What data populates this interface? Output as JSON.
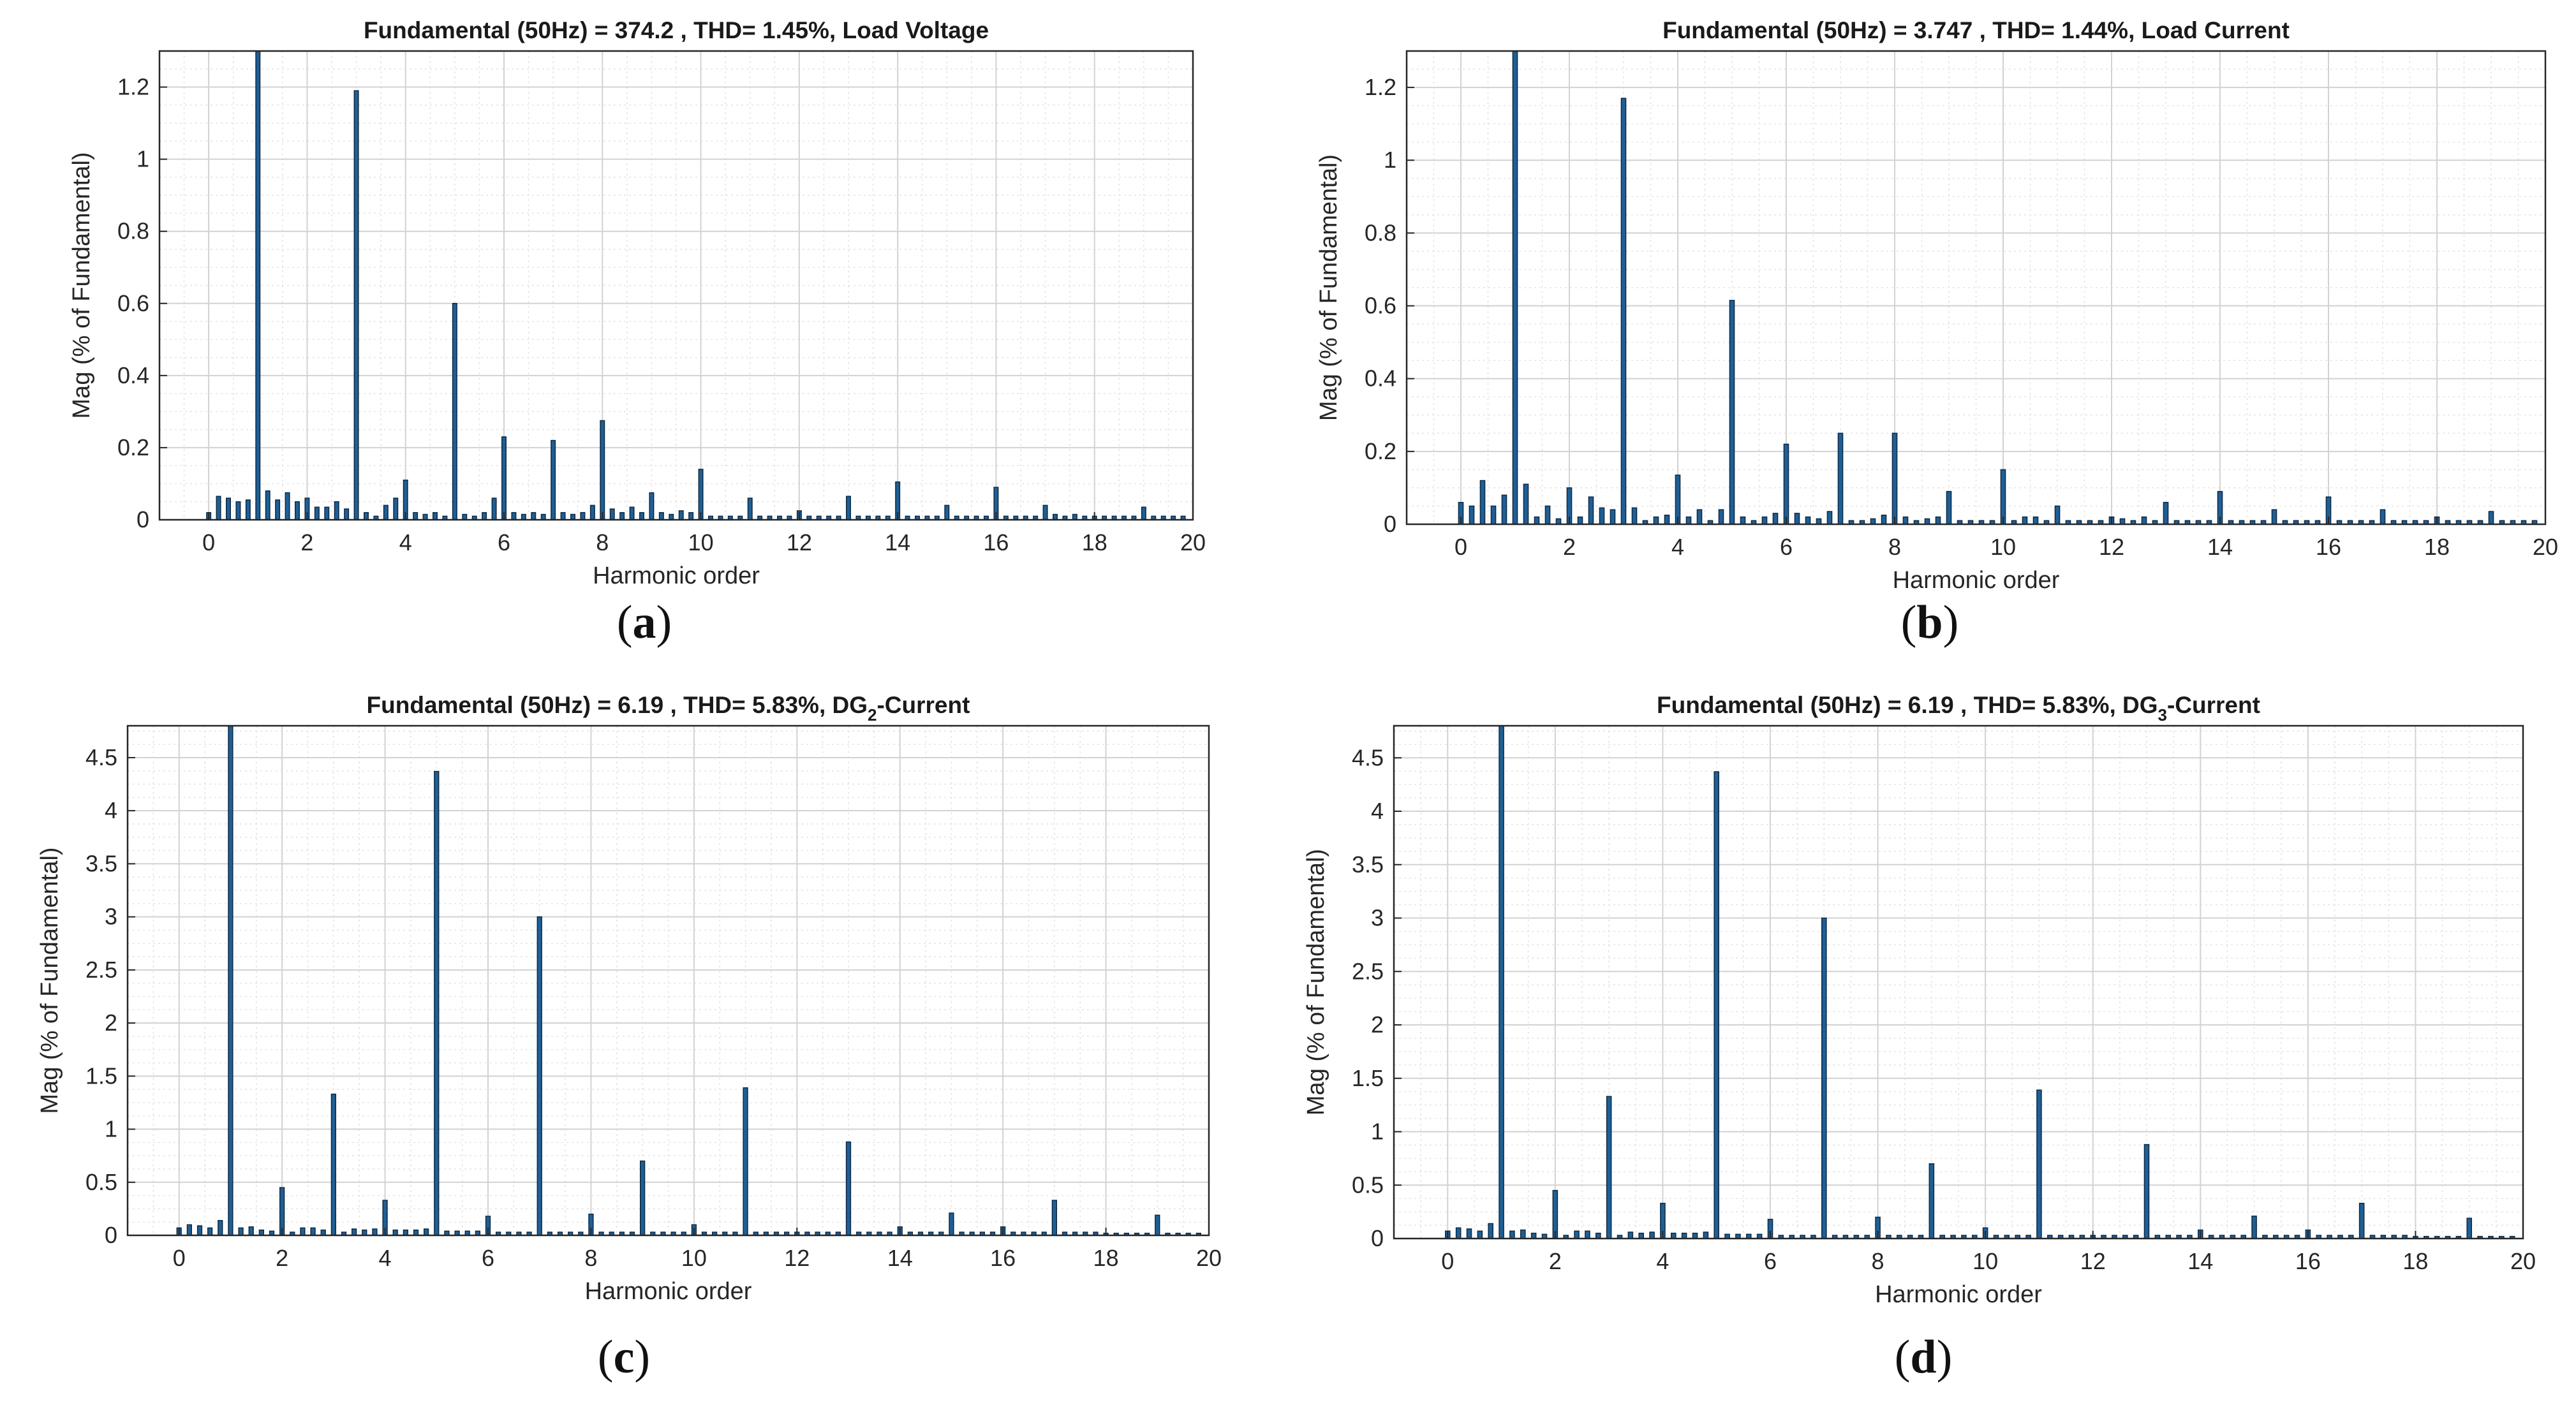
{
  "chart_data": [
    {
      "id": "a",
      "type": "bar",
      "panel_label": "a",
      "title": "Fundamental (50Hz) = 374.2 , THD= 1.45%, Load Voltage",
      "xlabel": "Harmonic order",
      "ylabel": "Mag (% of Fundamental)",
      "xlim": [
        -1,
        20
      ],
      "ylim": [
        0,
        1.3
      ],
      "xticks": [
        0,
        2,
        4,
        6,
        8,
        10,
        12,
        14,
        16,
        18,
        20
      ],
      "yticks": [
        0,
        0.2,
        0.4,
        0.6,
        0.8,
        1,
        1.2
      ],
      "ytick_labels": [
        "0",
        "0.2",
        "0.4",
        "0.6",
        "0.8",
        "1",
        "1.2"
      ],
      "grid": true,
      "bar_color": "#1f5f95",
      "x_start": 0,
      "x_step": 0.2,
      "values": [
        0.02,
        0.065,
        0.06,
        0.05,
        0.055,
        1.3,
        0.08,
        0.055,
        0.075,
        0.05,
        0.06,
        0.035,
        0.035,
        0.05,
        0.03,
        1.19,
        0.02,
        0.01,
        0.04,
        0.06,
        0.11,
        0.02,
        0.015,
        0.02,
        0.01,
        0.6,
        0.015,
        0.01,
        0.02,
        0.06,
        0.23,
        0.02,
        0.015,
        0.02,
        0.015,
        0.22,
        0.02,
        0.015,
        0.02,
        0.04,
        0.275,
        0.03,
        0.02,
        0.035,
        0.02,
        0.075,
        0.02,
        0.015,
        0.025,
        0.02,
        0.14,
        0.01,
        0.01,
        0.01,
        0.01,
        0.06,
        0.01,
        0.01,
        0.01,
        0.01,
        0.025,
        0.01,
        0.01,
        0.01,
        0.01,
        0.065,
        0.01,
        0.01,
        0.01,
        0.01,
        0.105,
        0.01,
        0.01,
        0.01,
        0.01,
        0.04,
        0.01,
        0.01,
        0.01,
        0.01,
        0.09,
        0.01,
        0.01,
        0.01,
        0.01,
        0.04,
        0.015,
        0.01,
        0.015,
        0.01,
        0.01,
        0.01,
        0.01,
        0.01,
        0.01,
        0.035,
        0.01,
        0.01,
        0.01,
        0.01
      ]
    },
    {
      "id": "b",
      "type": "bar",
      "panel_label": "b",
      "title": "Fundamental (50Hz) = 3.747 , THD= 1.44%, Load Current",
      "xlabel": "Harmonic order",
      "ylabel": "Mag (% of Fundamental)",
      "xlim": [
        -1,
        20
      ],
      "ylim": [
        0,
        1.3
      ],
      "xticks": [
        0,
        2,
        4,
        6,
        8,
        10,
        12,
        14,
        16,
        18,
        20
      ],
      "yticks": [
        0,
        0.2,
        0.4,
        0.6,
        0.8,
        1,
        1.2
      ],
      "ytick_labels": [
        "0",
        "0.2",
        "0.4",
        "0.6",
        "0.8",
        "1",
        "1.2"
      ],
      "grid": true,
      "bar_color": "#1f5f95",
      "x_start": 0,
      "x_step": 0.2,
      "values": [
        0.06,
        0.05,
        0.12,
        0.05,
        0.08,
        1.3,
        0.11,
        0.02,
        0.05,
        0.015,
        0.1,
        0.02,
        0.075,
        0.045,
        0.04,
        1.17,
        0.045,
        0.01,
        0.02,
        0.025,
        0.135,
        0.02,
        0.04,
        0.01,
        0.04,
        0.615,
        0.02,
        0.01,
        0.02,
        0.03,
        0.22,
        0.03,
        0.02,
        0.015,
        0.035,
        0.25,
        0.01,
        0.01,
        0.015,
        0.025,
        0.25,
        0.02,
        0.01,
        0.015,
        0.02,
        0.09,
        0.01,
        0.01,
        0.01,
        0.01,
        0.15,
        0.01,
        0.02,
        0.02,
        0.01,
        0.05,
        0.01,
        0.01,
        0.01,
        0.01,
        0.02,
        0.015,
        0.01,
        0.02,
        0.01,
        0.06,
        0.01,
        0.01,
        0.01,
        0.01,
        0.09,
        0.01,
        0.01,
        0.01,
        0.01,
        0.04,
        0.01,
        0.01,
        0.01,
        0.01,
        0.075,
        0.01,
        0.01,
        0.01,
        0.01,
        0.04,
        0.01,
        0.01,
        0.01,
        0.01,
        0.02,
        0.01,
        0.01,
        0.01,
        0.01,
        0.035,
        0.01,
        0.01,
        0.01,
        0.01
      ]
    },
    {
      "id": "c",
      "type": "bar",
      "panel_label": "c",
      "title": "Fundamental (50Hz) = 6.19 , THD= 5.83%, DG",
      "title_subscript": "2",
      "title_suffix": "-Current",
      "xlabel": "Harmonic order",
      "ylabel": "Mag (% of Fundamental)",
      "xlim": [
        -1,
        20
      ],
      "ylim": [
        0,
        4.8
      ],
      "xticks": [
        0,
        2,
        4,
        6,
        8,
        10,
        12,
        14,
        16,
        18,
        20
      ],
      "yticks": [
        0,
        0.5,
        1,
        1.5,
        2,
        2.5,
        3,
        3.5,
        4,
        4.5
      ],
      "ytick_labels": [
        "0",
        "0.5",
        "1",
        "1.5",
        "2",
        "2.5",
        "3",
        "3.5",
        "4",
        "4.5"
      ],
      "grid": true,
      "bar_color": "#1f5f95",
      "x_start": 0,
      "x_step": 0.2,
      "values": [
        0.07,
        0.1,
        0.09,
        0.07,
        0.14,
        4.8,
        0.07,
        0.08,
        0.05,
        0.04,
        0.45,
        0.03,
        0.07,
        0.07,
        0.05,
        1.33,
        0.03,
        0.06,
        0.05,
        0.06,
        0.33,
        0.05,
        0.05,
        0.05,
        0.06,
        4.37,
        0.04,
        0.04,
        0.04,
        0.04,
        0.18,
        0.03,
        0.03,
        0.03,
        0.03,
        3.0,
        0.03,
        0.03,
        0.03,
        0.03,
        0.2,
        0.03,
        0.03,
        0.03,
        0.03,
        0.7,
        0.03,
        0.03,
        0.03,
        0.03,
        0.1,
        0.03,
        0.03,
        0.03,
        0.03,
        1.39,
        0.03,
        0.03,
        0.03,
        0.03,
        0.03,
        0.03,
        0.03,
        0.03,
        0.03,
        0.88,
        0.03,
        0.03,
        0.03,
        0.03,
        0.08,
        0.03,
        0.03,
        0.03,
        0.03,
        0.21,
        0.03,
        0.03,
        0.03,
        0.03,
        0.08,
        0.03,
        0.03,
        0.03,
        0.03,
        0.33,
        0.03,
        0.03,
        0.03,
        0.03,
        0.02,
        0.02,
        0.02,
        0.02,
        0.02,
        0.19,
        0.02,
        0.02,
        0.02,
        0.02
      ]
    },
    {
      "id": "d",
      "type": "bar",
      "panel_label": "d",
      "title": "Fundamental (50Hz) = 6.19 , THD= 5.83%, DG",
      "title_subscript": "3",
      "title_suffix": "-Current",
      "xlabel": "Harmonic order",
      "ylabel": "Mag (% of Fundamental)",
      "xlim": [
        -1,
        20
      ],
      "ylim": [
        0,
        4.8
      ],
      "xticks": [
        0,
        2,
        4,
        6,
        8,
        10,
        12,
        14,
        16,
        18,
        20
      ],
      "yticks": [
        0,
        0.5,
        1,
        1.5,
        2,
        2.5,
        3,
        3.5,
        4,
        4.5
      ],
      "ytick_labels": [
        "0",
        "0.5",
        "1",
        "1.5",
        "2",
        "2.5",
        "3",
        "3.5",
        "4",
        "4.5"
      ],
      "grid": true,
      "bar_color": "#1f5f95",
      "x_start": 0,
      "x_step": 0.2,
      "values": [
        0.07,
        0.1,
        0.09,
        0.07,
        0.14,
        4.8,
        0.07,
        0.08,
        0.05,
        0.04,
        0.45,
        0.03,
        0.07,
        0.07,
        0.05,
        1.33,
        0.03,
        0.06,
        0.05,
        0.06,
        0.33,
        0.05,
        0.05,
        0.05,
        0.06,
        4.37,
        0.04,
        0.04,
        0.04,
        0.04,
        0.18,
        0.03,
        0.03,
        0.03,
        0.03,
        3.0,
        0.03,
        0.03,
        0.03,
        0.03,
        0.2,
        0.03,
        0.03,
        0.03,
        0.03,
        0.7,
        0.03,
        0.03,
        0.03,
        0.03,
        0.1,
        0.03,
        0.03,
        0.03,
        0.03,
        1.39,
        0.03,
        0.03,
        0.03,
        0.03,
        0.03,
        0.03,
        0.03,
        0.03,
        0.03,
        0.88,
        0.03,
        0.03,
        0.03,
        0.03,
        0.08,
        0.03,
        0.03,
        0.03,
        0.03,
        0.21,
        0.03,
        0.03,
        0.03,
        0.03,
        0.08,
        0.03,
        0.03,
        0.03,
        0.03,
        0.33,
        0.03,
        0.03,
        0.03,
        0.03,
        0.02,
        0.02,
        0.02,
        0.02,
        0.02,
        0.19,
        0.02,
        0.02,
        0.02,
        0.02
      ]
    }
  ]
}
